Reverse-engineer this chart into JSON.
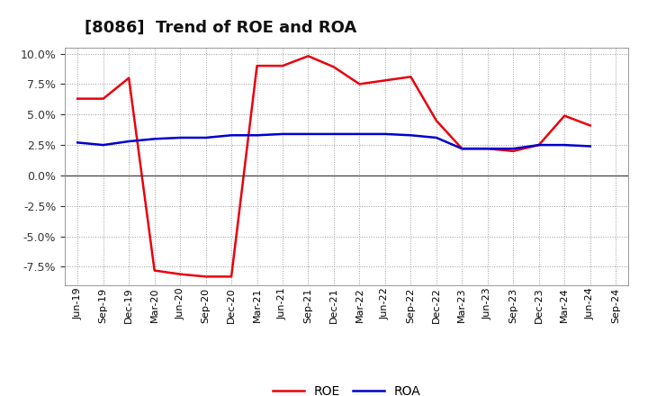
{
  "title": "[8086]  Trend of ROE and ROA",
  "x_labels": [
    "Jun-19",
    "Sep-19",
    "Dec-19",
    "Mar-20",
    "Jun-20",
    "Sep-20",
    "Dec-20",
    "Mar-21",
    "Jun-21",
    "Sep-21",
    "Dec-21",
    "Mar-22",
    "Jun-22",
    "Sep-22",
    "Dec-22",
    "Mar-23",
    "Jun-23",
    "Sep-23",
    "Dec-23",
    "Mar-24",
    "Jun-24",
    "Sep-24"
  ],
  "roe": [
    6.3,
    6.3,
    8.0,
    -7.8,
    -8.1,
    -8.3,
    -8.3,
    9.0,
    9.0,
    9.8,
    8.9,
    7.5,
    7.8,
    8.1,
    4.5,
    2.2,
    2.2,
    2.0,
    2.5,
    4.9,
    4.1,
    null
  ],
  "roa": [
    2.7,
    2.5,
    2.8,
    3.0,
    3.1,
    3.1,
    3.3,
    3.3,
    3.4,
    3.4,
    3.4,
    3.4,
    3.4,
    3.3,
    3.1,
    2.2,
    2.2,
    2.2,
    2.5,
    2.5,
    2.4,
    null
  ],
  "roe_color": "#e8000d",
  "roa_color": "#0000cc",
  "ylim": [
    -9.0,
    10.5
  ],
  "yticks": [
    -7.5,
    -5.0,
    -2.5,
    0.0,
    2.5,
    5.0,
    7.5,
    10.0
  ],
  "bg_color": "#ffffff",
  "plot_bg_color": "#ffffff",
  "grid_color": "#999999",
  "title_fontsize": 13,
  "label_fontsize": 8,
  "legend_fontsize": 10,
  "line_width": 1.8
}
